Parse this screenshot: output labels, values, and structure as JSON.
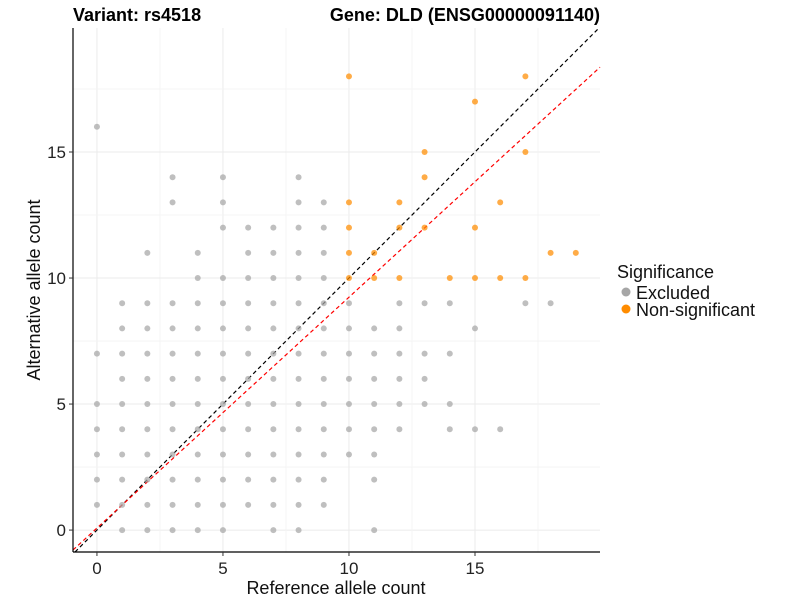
{
  "chart_data": {
    "type": "scatter",
    "title_left": "Variant: rs4518",
    "title_right": "Gene: DLD (ENSG00000091140)",
    "xlabel": "Reference allele count",
    "ylabel": "Alternative allele count",
    "xlim": [
      -0.95,
      19.96
    ],
    "ylim": [
      -0.87,
      19.92
    ],
    "xticks": [
      0,
      5,
      10,
      15
    ],
    "yticks": [
      0,
      5,
      10,
      15
    ],
    "grid": true,
    "legend": {
      "title": "Significance",
      "placement": "right",
      "entries": [
        {
          "label": "Excluded",
          "color": "#A6A6A6"
        },
        {
          "label": "Non-significant",
          "color": "#FF8C00"
        }
      ]
    },
    "reference_lines": [
      {
        "name": "identity",
        "slope": 1,
        "intercept": 0,
        "color": "#000000",
        "style": "dashed"
      },
      {
        "name": "fit",
        "slope": 0.916,
        "intercept": 0.08,
        "color": "#FF0000",
        "style": "dashed"
      }
    ],
    "series": [
      {
        "name": "Excluded",
        "color": "#A6A6A6",
        "points": [
          [
            1,
            0
          ],
          [
            2,
            0
          ],
          [
            3,
            0
          ],
          [
            4,
            0
          ],
          [
            5,
            0
          ],
          [
            7,
            0
          ],
          [
            8,
            0
          ],
          [
            11,
            0
          ],
          [
            0,
            1
          ],
          [
            1,
            1
          ],
          [
            2,
            1
          ],
          [
            3,
            1
          ],
          [
            4,
            1
          ],
          [
            5,
            1
          ],
          [
            6,
            1
          ],
          [
            7,
            1
          ],
          [
            8,
            1
          ],
          [
            9,
            1
          ],
          [
            0,
            2
          ],
          [
            1,
            2
          ],
          [
            2,
            2
          ],
          [
            3,
            2
          ],
          [
            4,
            2
          ],
          [
            5,
            2
          ],
          [
            6,
            2
          ],
          [
            7,
            2
          ],
          [
            8,
            2
          ],
          [
            9,
            2
          ],
          [
            11,
            2
          ],
          [
            0,
            3
          ],
          [
            1,
            3
          ],
          [
            2,
            3
          ],
          [
            3,
            3
          ],
          [
            4,
            3
          ],
          [
            5,
            3
          ],
          [
            6,
            3
          ],
          [
            7,
            3
          ],
          [
            8,
            3
          ],
          [
            9,
            3
          ],
          [
            10,
            3
          ],
          [
            11,
            3
          ],
          [
            0,
            4
          ],
          [
            1,
            4
          ],
          [
            2,
            4
          ],
          [
            3,
            4
          ],
          [
            4,
            4
          ],
          [
            5,
            4
          ],
          [
            6,
            4
          ],
          [
            7,
            4
          ],
          [
            8,
            4
          ],
          [
            9,
            4
          ],
          [
            10,
            4
          ],
          [
            11,
            4
          ],
          [
            12,
            4
          ],
          [
            14,
            4
          ],
          [
            15,
            4
          ],
          [
            16,
            4
          ],
          [
            0,
            5
          ],
          [
            1,
            5
          ],
          [
            2,
            5
          ],
          [
            3,
            5
          ],
          [
            4,
            5
          ],
          [
            5,
            5
          ],
          [
            6,
            5
          ],
          [
            7,
            5
          ],
          [
            8,
            5
          ],
          [
            9,
            5
          ],
          [
            10,
            5
          ],
          [
            11,
            5
          ],
          [
            12,
            5
          ],
          [
            13,
            5
          ],
          [
            14,
            5
          ],
          [
            1,
            6
          ],
          [
            2,
            6
          ],
          [
            3,
            6
          ],
          [
            4,
            6
          ],
          [
            5,
            6
          ],
          [
            6,
            6
          ],
          [
            7,
            6
          ],
          [
            8,
            6
          ],
          [
            9,
            6
          ],
          [
            10,
            6
          ],
          [
            11,
            6
          ],
          [
            12,
            6
          ],
          [
            13,
            6
          ],
          [
            0,
            7
          ],
          [
            1,
            7
          ],
          [
            2,
            7
          ],
          [
            3,
            7
          ],
          [
            4,
            7
          ],
          [
            5,
            7
          ],
          [
            6,
            7
          ],
          [
            7,
            7
          ],
          [
            8,
            7
          ],
          [
            9,
            7
          ],
          [
            10,
            7
          ],
          [
            11,
            7
          ],
          [
            12,
            7
          ],
          [
            13,
            7
          ],
          [
            14,
            7
          ],
          [
            1,
            8
          ],
          [
            2,
            8
          ],
          [
            3,
            8
          ],
          [
            4,
            8
          ],
          [
            5,
            8
          ],
          [
            6,
            8
          ],
          [
            7,
            8
          ],
          [
            8,
            8
          ],
          [
            9,
            8
          ],
          [
            10,
            8
          ],
          [
            11,
            8
          ],
          [
            12,
            8
          ],
          [
            15,
            8
          ],
          [
            1,
            9
          ],
          [
            2,
            9
          ],
          [
            3,
            9
          ],
          [
            4,
            9
          ],
          [
            5,
            9
          ],
          [
            6,
            9
          ],
          [
            7,
            9
          ],
          [
            8,
            9
          ],
          [
            9,
            9
          ],
          [
            10,
            9
          ],
          [
            12,
            9
          ],
          [
            13,
            9
          ],
          [
            14,
            9
          ],
          [
            17,
            9
          ],
          [
            18,
            9
          ],
          [
            4,
            10
          ],
          [
            5,
            10
          ],
          [
            6,
            10
          ],
          [
            7,
            10
          ],
          [
            8,
            10
          ],
          [
            9,
            10
          ],
          [
            2,
            11
          ],
          [
            4,
            11
          ],
          [
            6,
            11
          ],
          [
            7,
            11
          ],
          [
            8,
            11
          ],
          [
            9,
            11
          ],
          [
            5,
            12
          ],
          [
            6,
            12
          ],
          [
            7,
            12
          ],
          [
            8,
            12
          ],
          [
            9,
            12
          ],
          [
            3,
            13
          ],
          [
            5,
            13
          ],
          [
            8,
            13
          ],
          [
            9,
            13
          ],
          [
            3,
            14
          ],
          [
            5,
            14
          ],
          [
            8,
            14
          ],
          [
            0,
            16
          ]
        ]
      },
      {
        "name": "Non-significant",
        "color": "#FF8C00",
        "points": [
          [
            10,
            18
          ],
          [
            17,
            18
          ],
          [
            15,
            17
          ],
          [
            13,
            15
          ],
          [
            17,
            15
          ],
          [
            13,
            14
          ],
          [
            10,
            13
          ],
          [
            12,
            13
          ],
          [
            16,
            13
          ],
          [
            10,
            12
          ],
          [
            12,
            12
          ],
          [
            13,
            12
          ],
          [
            15,
            12
          ],
          [
            10,
            11
          ],
          [
            11,
            11
          ],
          [
            18,
            11
          ],
          [
            19,
            11
          ],
          [
            10,
            10
          ],
          [
            11,
            10
          ],
          [
            12,
            10
          ],
          [
            14,
            10
          ],
          [
            15,
            10
          ],
          [
            16,
            10
          ],
          [
            17,
            10
          ]
        ]
      }
    ]
  }
}
